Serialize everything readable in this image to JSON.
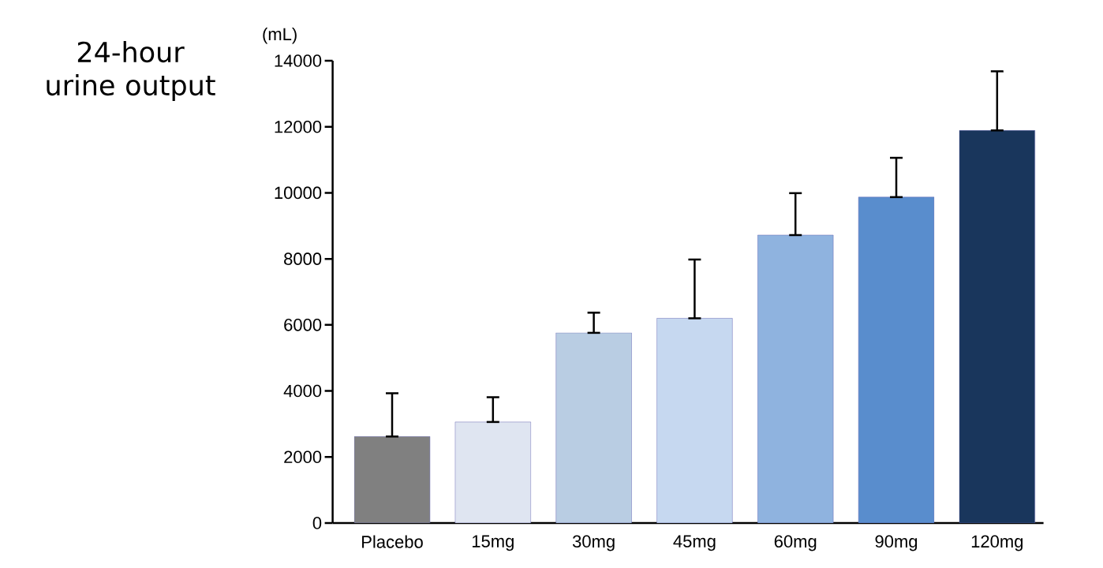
{
  "chart_data": {
    "type": "bar",
    "title": "24-hour urine output",
    "ylabel": "(mL)",
    "categories": [
      "Placebo",
      "15mg",
      "30mg",
      "45mg",
      "60mg",
      "90mg",
      "120mg"
    ],
    "values": [
      2620,
      3060,
      5760,
      6200,
      8720,
      9870,
      11890
    ],
    "errors": [
      [
        2620,
        3930
      ],
      [
        3060,
        3810
      ],
      [
        5760,
        6370
      ],
      [
        6200,
        7980
      ],
      [
        8720,
        9990
      ],
      [
        9870,
        11060
      ],
      [
        11890,
        13680
      ]
    ],
    "colors": [
      "#808080",
      "#dfe5f1",
      "#b9cde3",
      "#c6d8f0",
      "#8fb3df",
      "#598dcd",
      "#19365c"
    ],
    "ylim": [
      0,
      14000
    ],
    "yticks": [
      0,
      2000,
      4000,
      6000,
      8000,
      10000,
      12000,
      14000
    ],
    "grid": false
  }
}
